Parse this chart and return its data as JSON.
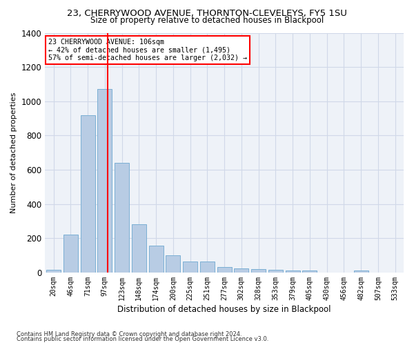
{
  "title1": "23, CHERRYWOOD AVENUE, THORNTON-CLEVELEYS, FY5 1SU",
  "title2": "Size of property relative to detached houses in Blackpool",
  "xlabel": "Distribution of detached houses by size in Blackpool",
  "ylabel": "Number of detached properties",
  "categories": [
    "20sqm",
    "46sqm",
    "71sqm",
    "97sqm",
    "123sqm",
    "148sqm",
    "174sqm",
    "200sqm",
    "225sqm",
    "251sqm",
    "277sqm",
    "302sqm",
    "328sqm",
    "353sqm",
    "379sqm",
    "405sqm",
    "430sqm",
    "456sqm",
    "482sqm",
    "507sqm",
    "533sqm"
  ],
  "values": [
    15,
    220,
    920,
    1070,
    640,
    280,
    155,
    100,
    65,
    65,
    30,
    25,
    20,
    15,
    12,
    10,
    0,
    0,
    10,
    0,
    0
  ],
  "bar_color": "#b8cce4",
  "bar_edge_color": "#7bafd4",
  "red_line_x": 3.18,
  "red_line_label": "23 CHERRYWOOD AVENUE: 106sqm",
  "annot_line2": "← 42% of detached houses are smaller (1,495)",
  "annot_line3": "57% of semi-detached houses are larger (2,032) →",
  "annotation_box_color": "white",
  "annotation_box_edge": "red",
  "ylim": [
    0,
    1400
  ],
  "yticks": [
    0,
    200,
    400,
    600,
    800,
    1000,
    1200,
    1400
  ],
  "grid_color": "#d0d8e8",
  "background_color": "#eef2f8",
  "footer1": "Contains HM Land Registry data © Crown copyright and database right 2024.",
  "footer2": "Contains public sector information licensed under the Open Government Licence v3.0."
}
